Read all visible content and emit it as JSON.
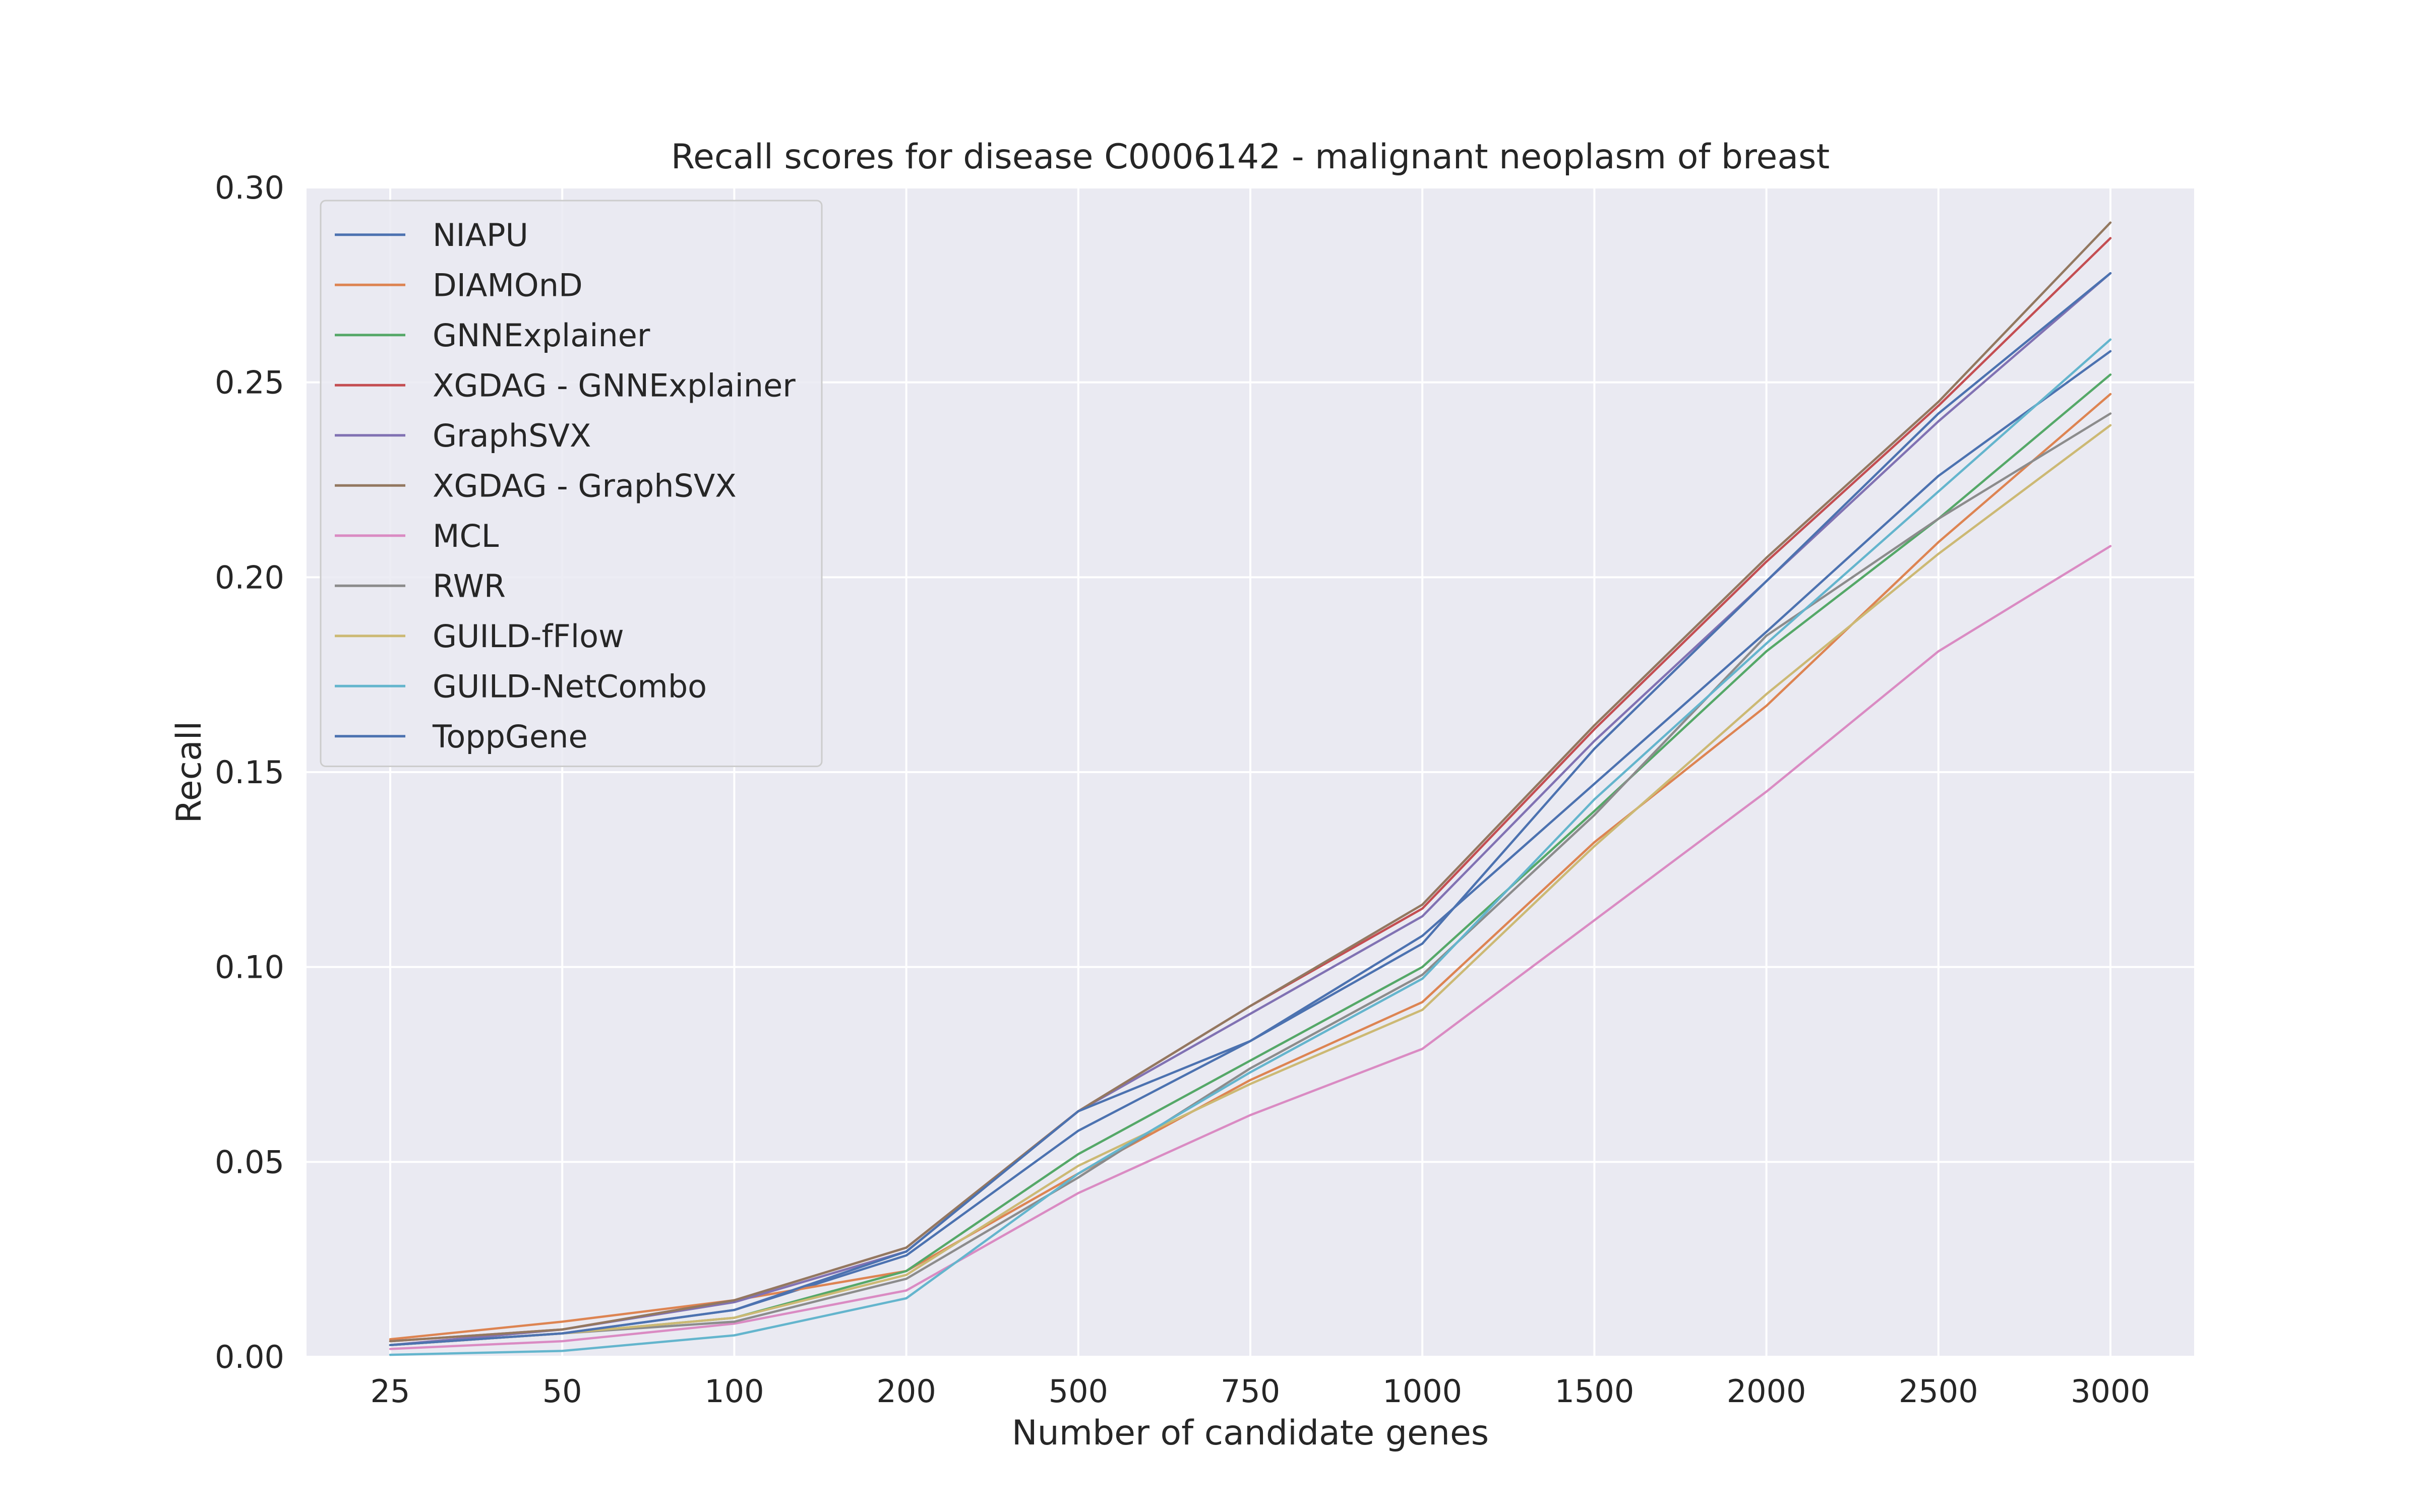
{
  "chart_data": {
    "type": "line",
    "title": "Recall scores for disease C0006142 - malignant neoplasm of breast",
    "xlabel": "Number of candidate genes",
    "ylabel": "Recall",
    "categories": [
      "25",
      "50",
      "100",
      "200",
      "500",
      "750",
      "1000",
      "1500",
      "2000",
      "2500",
      "3000"
    ],
    "ylim": [
      0,
      0.3
    ],
    "yticks": [
      "0.00",
      "0.05",
      "0.10",
      "0.15",
      "0.20",
      "0.25",
      "0.30"
    ],
    "grid": true,
    "legend_position": "top-left",
    "series": [
      {
        "name": "NIAPU",
        "color": "#4c72b0",
        "values": [
          0.003,
          0.006,
          0.012,
          0.026,
          0.058,
          0.081,
          0.108,
          0.147,
          0.186,
          0.226,
          0.258
        ]
      },
      {
        "name": "DIAMOnD",
        "color": "#dd8452",
        "values": [
          0.0045,
          0.009,
          0.0145,
          0.022,
          0.047,
          0.071,
          0.091,
          0.132,
          0.167,
          0.209,
          0.247
        ]
      },
      {
        "name": "GNNExplainer",
        "color": "#55a868",
        "values": [
          0.003,
          0.006,
          0.01,
          0.022,
          0.052,
          0.076,
          0.1,
          0.14,
          0.181,
          0.215,
          0.252
        ]
      },
      {
        "name": "XGDAG - GNNExplainer",
        "color": "#c44e52",
        "values": [
          0.004,
          0.007,
          0.0145,
          0.028,
          0.063,
          0.09,
          0.115,
          0.161,
          0.204,
          0.244,
          0.287
        ]
      },
      {
        "name": "GraphSVX",
        "color": "#8172b3",
        "values": [
          0.003,
          0.007,
          0.014,
          0.027,
          0.063,
          0.088,
          0.113,
          0.158,
          0.199,
          0.24,
          0.278
        ]
      },
      {
        "name": "XGDAG - GraphSVX",
        "color": "#937860",
        "values": [
          0.004,
          0.007,
          0.0145,
          0.028,
          0.063,
          0.09,
          0.116,
          0.162,
          0.205,
          0.245,
          0.291
        ]
      },
      {
        "name": "MCL",
        "color": "#da8bc3",
        "values": [
          0.002,
          0.004,
          0.0085,
          0.017,
          0.042,
          0.062,
          0.079,
          0.112,
          0.145,
          0.181,
          0.208
        ]
      },
      {
        "name": "RWR",
        "color": "#8c8c8c",
        "values": [
          0.003,
          0.006,
          0.009,
          0.02,
          0.046,
          0.074,
          0.098,
          0.139,
          0.185,
          0.215,
          0.242
        ]
      },
      {
        "name": "GUILD-fFlow",
        "color": "#ccb974",
        "values": [
          0.003,
          0.006,
          0.01,
          0.021,
          0.049,
          0.07,
          0.089,
          0.131,
          0.17,
          0.206,
          0.239
        ]
      },
      {
        "name": "GUILD-NetCombo",
        "color": "#64b5cd",
        "values": [
          0.0005,
          0.0015,
          0.0055,
          0.015,
          0.047,
          0.073,
          0.097,
          0.143,
          0.183,
          0.222,
          0.261
        ]
      },
      {
        "name": "ToppGene",
        "color": "#4c72b0",
        "values": [
          0.003,
          0.006,
          0.012,
          0.027,
          0.063,
          0.081,
          0.106,
          0.156,
          0.199,
          0.242,
          0.278
        ]
      }
    ]
  }
}
